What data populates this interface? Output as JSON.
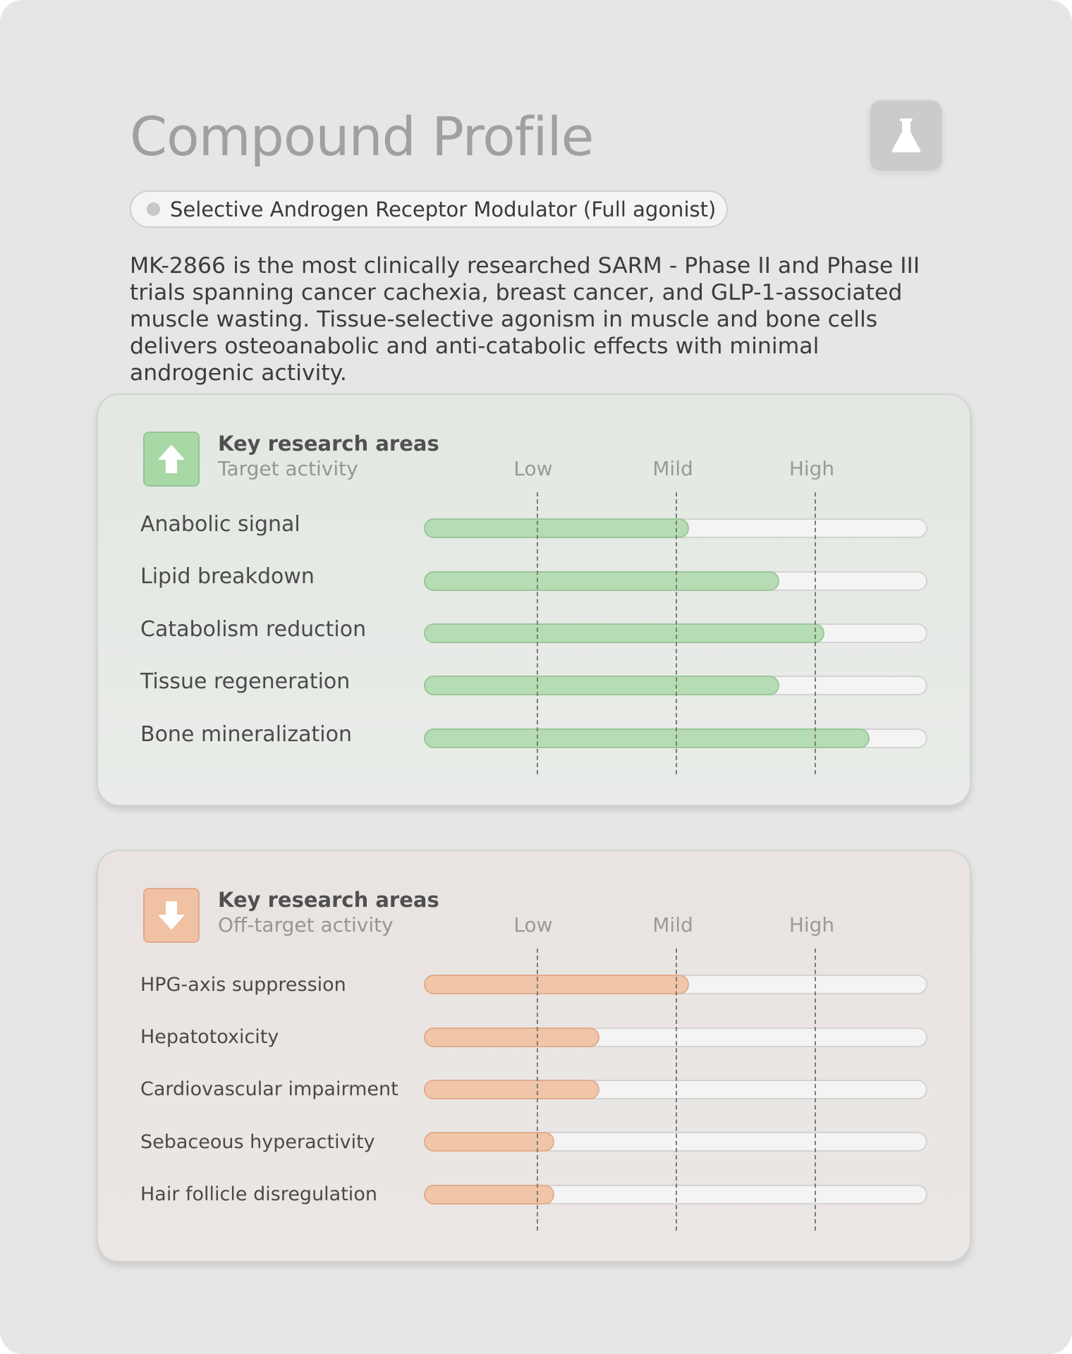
{
  "header": {
    "title": "Compound Profile",
    "icon": "flask-icon",
    "classification": "Selective Androgen Receptor Modulator (Full agonist)"
  },
  "description": "MK-2866 is the most clinically researched SARM - Phase II and Phase III trials spanning cancer cachexia, breast cancer, and GLP-1-associated muscle wasting. Tissue-selective agonism in muscle and bone cells delivers osteoanabolic and anti-catabolic effects with minimal androgenic activity.",
  "colors": {
    "target": "#b6dcb3",
    "off_target": "#f1c6a8",
    "background": "#e6e6e6"
  },
  "target_activity": {
    "heading": "Key research areas",
    "subheading": "Target activity",
    "icon": "arrow-up-icon",
    "scale": [
      "Low",
      "Mild",
      "High"
    ],
    "items": [
      {
        "label": "Anabolic signal",
        "level": 0.53
      },
      {
        "label": "Lipid breakdown",
        "level": 0.71
      },
      {
        "label": "Catabolism reduction",
        "level": 0.8
      },
      {
        "label": "Tissue regeneration",
        "level": 0.71
      },
      {
        "label": "Bone mineralization",
        "level": 0.89
      }
    ]
  },
  "off_target_activity": {
    "heading": "Key research areas",
    "subheading": "Off-target activity",
    "icon": "arrow-down-icon",
    "scale": [
      "Low",
      "Mild",
      "High"
    ],
    "items": [
      {
        "label": "HPG-axis suppression",
        "level": 0.53
      },
      {
        "label": "Hepatotoxicity",
        "level": 0.35
      },
      {
        "label": "Cardiovascular impairment",
        "level": 0.35
      },
      {
        "label": "Sebaceous hyperactivity",
        "level": 0.26
      },
      {
        "label": "Hair follicle disregulation",
        "level": 0.26
      }
    ]
  }
}
